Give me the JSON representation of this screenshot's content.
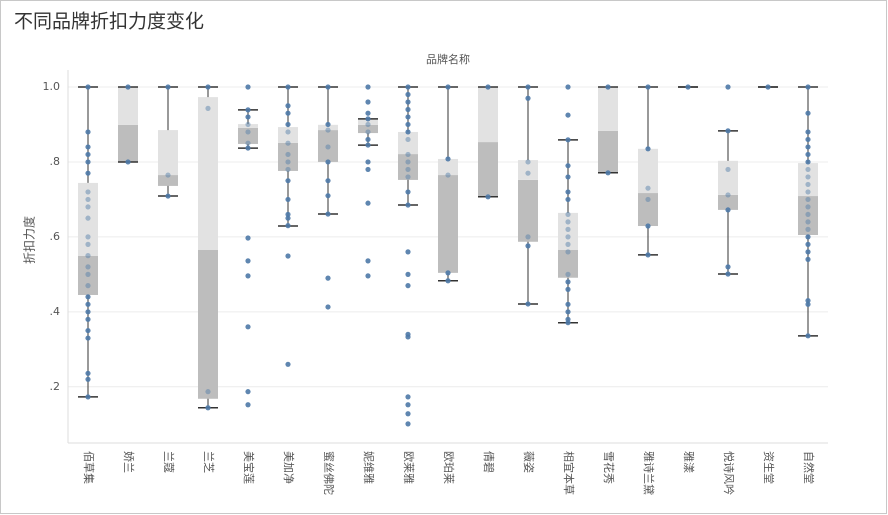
{
  "chart_data": {
    "type": "box",
    "title": "不同品牌折扣力度变化",
    "x_label": "品牌名称",
    "y_label": "折扣力度",
    "categories": [
      "佰草集",
      "娇兰",
      "兰蔻",
      "兰芝",
      "美宝莲",
      "美加净",
      "蜜丝佛陀",
      "妮维雅",
      "欧莱雅",
      "欧珀莱",
      "倩碧",
      "薇姿",
      "相宜本草",
      "雪花秀",
      "雅诗兰黛",
      "雅漾",
      "悦诗风吟",
      "资生堂",
      "自然堂"
    ],
    "boxes": [
      {
        "min": 0.173,
        "q1": 0.445,
        "median": 0.549,
        "q3": 0.744,
        "max": 1.0,
        "points": [
          1.0,
          0.88,
          0.84,
          0.82,
          0.8,
          0.77,
          0.72,
          0.7,
          0.68,
          0.65,
          0.6,
          0.58,
          0.55,
          0.52,
          0.5,
          0.47,
          0.44,
          0.42,
          0.4,
          0.38,
          0.35,
          0.33,
          0.236,
          0.22,
          0.173
        ]
      },
      {
        "min": 0.8,
        "q1": 0.8,
        "median": 0.899,
        "q3": 1.0,
        "max": 1.0,
        "points": [
          1.0,
          0.8
        ]
      },
      {
        "min": 0.709,
        "q1": 0.736,
        "median": 0.765,
        "q3": 0.885,
        "max": 1.0,
        "points": [
          1.0,
          0.765,
          0.709
        ]
      },
      {
        "min": 0.144,
        "q1": 0.168,
        "median": 0.565,
        "q3": 0.973,
        "max": 1.0,
        "points": [
          1.0,
          0.943,
          0.187,
          0.144
        ]
      },
      {
        "min": 0.837,
        "q1": 0.848,
        "median": 0.891,
        "q3": 0.901,
        "max": 0.939,
        "points": [
          1.0,
          0.939,
          0.92,
          0.9,
          0.88,
          0.85,
          0.837,
          0.597,
          0.536,
          0.496,
          0.36,
          0.187,
          0.152
        ]
      },
      {
        "min": 0.629,
        "q1": 0.776,
        "median": 0.851,
        "q3": 0.893,
        "max": 1.0,
        "points": [
          1.0,
          0.95,
          0.93,
          0.9,
          0.88,
          0.85,
          0.82,
          0.8,
          0.78,
          0.75,
          0.7,
          0.66,
          0.65,
          0.63,
          0.549,
          0.26
        ]
      },
      {
        "min": 0.661,
        "q1": 0.8,
        "median": 0.885,
        "q3": 0.899,
        "max": 1.0,
        "points": [
          1.0,
          0.9,
          0.885,
          0.84,
          0.8,
          0.75,
          0.71,
          0.661,
          0.49,
          0.413
        ]
      },
      {
        "min": 0.845,
        "q1": 0.877,
        "median": 0.899,
        "q3": 0.915,
        "max": 0.915,
        "points": [
          1.0,
          0.96,
          0.93,
          0.915,
          0.9,
          0.88,
          0.86,
          0.845,
          0.8,
          0.78,
          0.69,
          0.536,
          0.496
        ]
      },
      {
        "min": 0.685,
        "q1": 0.752,
        "median": 0.821,
        "q3": 0.88,
        "max": 1.0,
        "points": [
          1.0,
          0.98,
          0.96,
          0.94,
          0.92,
          0.9,
          0.88,
          0.86,
          0.82,
          0.8,
          0.78,
          0.76,
          0.72,
          0.685,
          0.56,
          0.5,
          0.47,
          0.34,
          0.333,
          0.173,
          0.152,
          0.128,
          0.101
        ]
      },
      {
        "min": 0.483,
        "q1": 0.504,
        "median": 0.765,
        "q3": 0.808,
        "max": 1.0,
        "points": [
          1.0,
          0.808,
          0.765,
          0.504,
          0.483
        ]
      },
      {
        "min": 0.707,
        "q1": 0.707,
        "median": 0.853,
        "q3": 1.0,
        "max": 1.0,
        "points": [
          1.0,
          0.707
        ]
      },
      {
        "min": 0.421,
        "q1": 0.587,
        "median": 0.752,
        "q3": 0.805,
        "max": 1.0,
        "points": [
          1.0,
          0.97,
          0.8,
          0.77,
          0.6,
          0.576,
          0.421
        ]
      },
      {
        "min": 0.371,
        "q1": 0.491,
        "median": 0.565,
        "q3": 0.664,
        "max": 0.859,
        "points": [
          1.0,
          0.925,
          0.859,
          0.79,
          0.76,
          0.72,
          0.7,
          0.66,
          0.64,
          0.62,
          0.6,
          0.58,
          0.56,
          0.5,
          0.48,
          0.46,
          0.42,
          0.4,
          0.38,
          0.371
        ]
      },
      {
        "min": 0.771,
        "q1": 0.771,
        "median": 0.883,
        "q3": 1.0,
        "max": 1.0,
        "points": [
          1.0,
          0.771
        ]
      },
      {
        "min": 0.552,
        "q1": 0.629,
        "median": 0.717,
        "q3": 0.835,
        "max": 1.0,
        "points": [
          1.0,
          0.835,
          0.73,
          0.7,
          0.629,
          0.552
        ]
      },
      {
        "min": 1.0,
        "q1": 1.0,
        "median": 1.0,
        "q3": 1.0,
        "max": 1.0,
        "points": [
          1.0
        ]
      },
      {
        "min": 0.501,
        "q1": 0.672,
        "median": 0.712,
        "q3": 0.803,
        "max": 0.883,
        "points": [
          1.0,
          0.883,
          0.78,
          0.712,
          0.672,
          0.52,
          0.501
        ]
      },
      {
        "min": 1.0,
        "q1": 1.0,
        "median": 1.0,
        "q3": 1.0,
        "max": 1.0,
        "points": [
          1.0
        ]
      },
      {
        "min": 0.336,
        "q1": 0.605,
        "median": 0.709,
        "q3": 0.797,
        "max": 1.0,
        "points": [
          1.0,
          0.93,
          0.88,
          0.86,
          0.84,
          0.82,
          0.8,
          0.78,
          0.76,
          0.74,
          0.72,
          0.7,
          0.68,
          0.66,
          0.64,
          0.62,
          0.6,
          0.58,
          0.56,
          0.54,
          0.43,
          0.42,
          0.336
        ]
      }
    ],
    "ylim": [
      0.05,
      1.04
    ],
    "yticks": [
      {
        "value": 0.2,
        "label": ".2"
      },
      {
        "value": 0.4,
        "label": ".4"
      },
      {
        "value": 0.6,
        "label": ".6"
      },
      {
        "value": 0.8,
        "label": ".8"
      },
      {
        "value": 1,
        "label": "1.0"
      }
    ],
    "grid": true,
    "point_color": "#4e79a7",
    "lower_box_color": "#bdbdbd",
    "upper_box_color": "#e2e2e2",
    "whisker_color": "#333333"
  }
}
